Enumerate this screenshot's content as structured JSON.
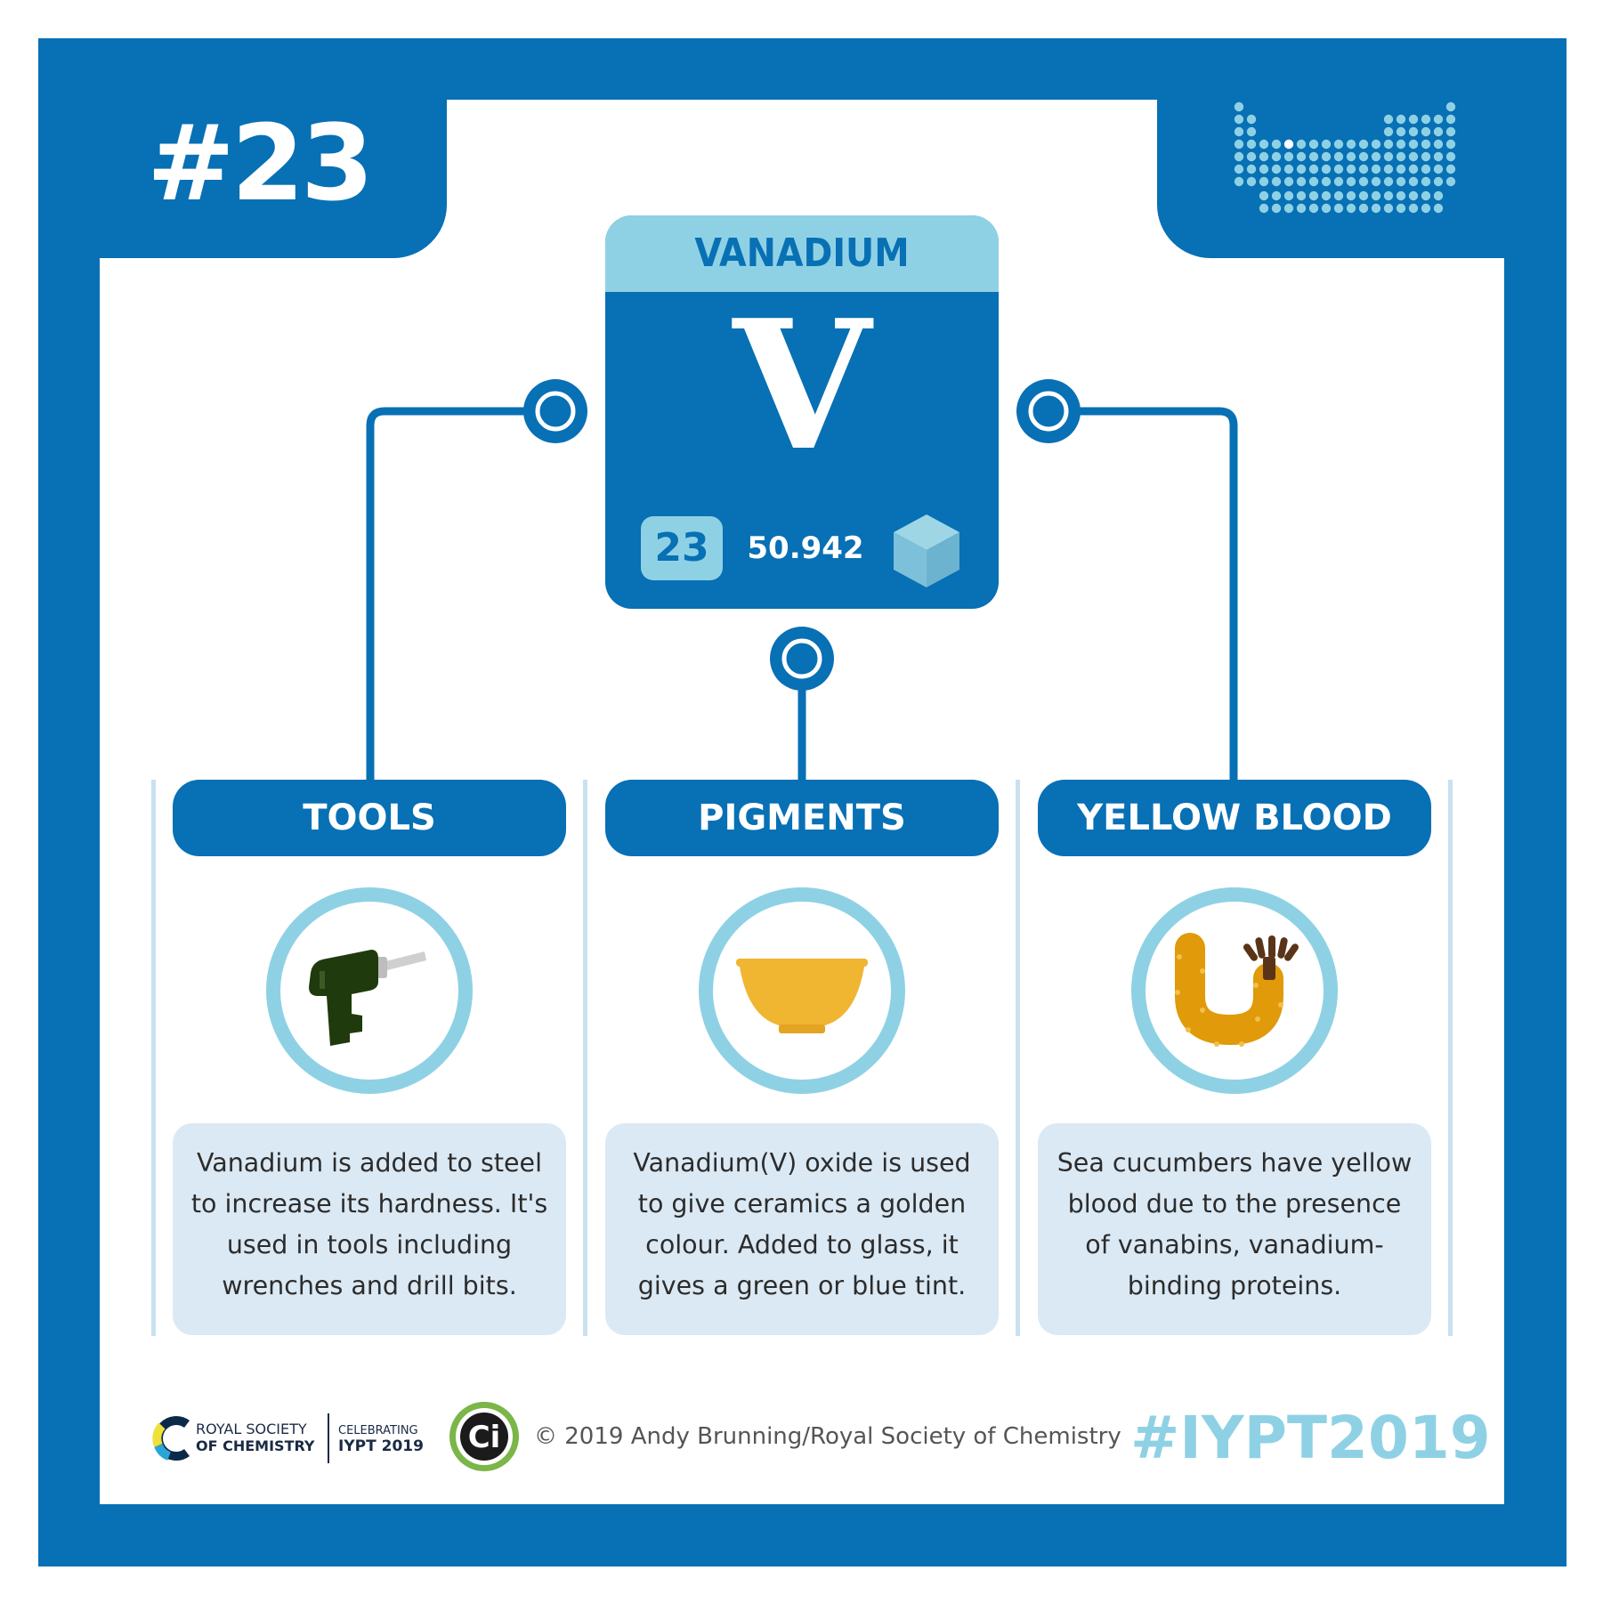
{
  "badge": {
    "number": "#23"
  },
  "element": {
    "name": "VANADIUM",
    "symbol": "V",
    "atomic_number": "23",
    "atomic_mass": "50.942"
  },
  "icons": {
    "periodic_table": "periodic-table-icon",
    "state": "solid-cube-icon",
    "tools": "drill-icon",
    "pigments": "bowl-icon",
    "yellow_blood": "sea-cucumber-icon"
  },
  "sections": [
    {
      "title": "TOOLS",
      "description": "Vanadium is added to steel to increase its hardness. It's used in tools including wrenches and drill bits."
    },
    {
      "title": "PIGMENTS",
      "description": "Vanadium(V) oxide is used to give ceramics a golden colour. Added to glass, it gives a green or blue tint."
    },
    {
      "title": "YELLOW BLOOD",
      "description": "Sea cucumbers have yellow blood due to the presence of vanabins, vanadium-binding proteins."
    }
  ],
  "footer": {
    "rsc_line1": "ROYAL SOCIETY",
    "rsc_line2": "OF CHEMISTRY",
    "iypt_line1": "CELEBRATING",
    "iypt_line2": "IYPT 2019",
    "ci_logo_text": "Ci",
    "copyright": "© 2019 Andy Brunning/Royal Society of Chemistry",
    "hashtag": "#IYPT2019"
  },
  "colors": {
    "primary_blue": "#0870b4",
    "light_blue": "#8fd1e4",
    "pale_blue": "#dbe9f4",
    "drill_green": "#1f3a0c",
    "bowl_gold": "#f0b531",
    "cucumber_orange": "#e09a0a"
  }
}
